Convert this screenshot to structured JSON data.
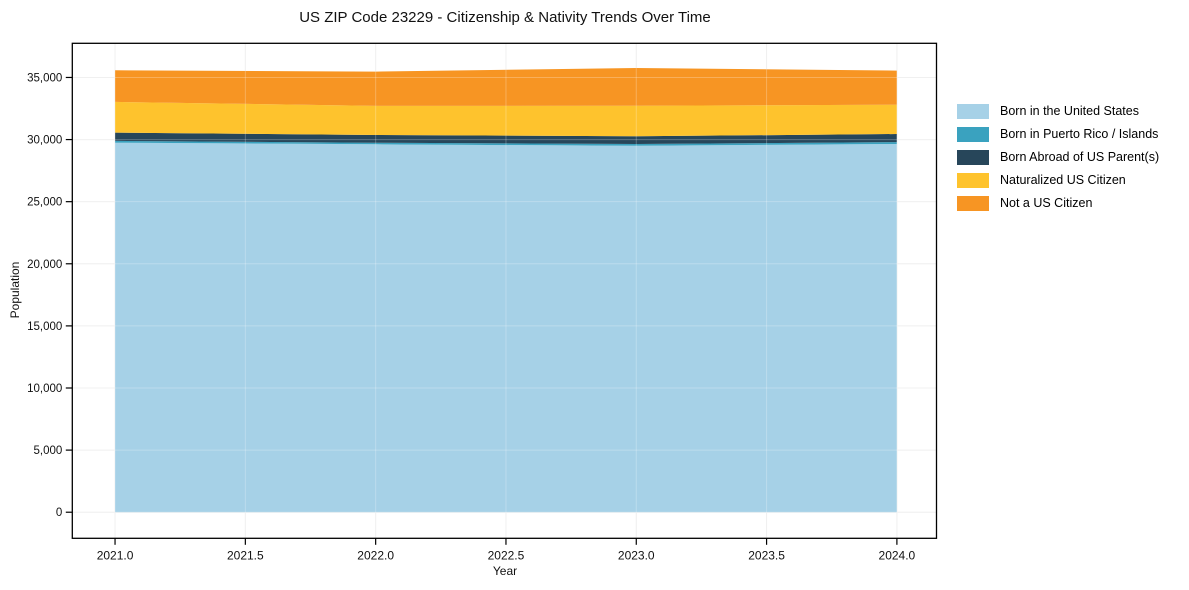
{
  "chart_data": {
    "type": "area",
    "stacked": true,
    "title": "US ZIP Code 23229 - Citizenship & Nativity Trends Over Time",
    "xlabel": "Year",
    "ylabel": "Population",
    "x": [
      2021,
      2022,
      2023,
      2024
    ],
    "series": [
      {
        "name": "Born in the United States",
        "color": "#A6D1E7",
        "values": [
          29750,
          29620,
          29500,
          29640
        ]
      },
      {
        "name": "Born in Puerto Rico / Islands",
        "color": "#3AA2BF",
        "values": [
          140,
          130,
          140,
          160
        ]
      },
      {
        "name": "Born Abroad of US Parent(s)",
        "color": "#27465A",
        "values": [
          670,
          620,
          620,
          650
        ]
      },
      {
        "name": "Naturalized US Citizen",
        "color": "#FEC32D",
        "values": [
          2470,
          2340,
          2460,
          2360
        ]
      },
      {
        "name": "Not a US Citizen",
        "color": "#F79523",
        "values": [
          2550,
          2760,
          3040,
          2740
        ]
      }
    ],
    "x_ticks": [
      2021.0,
      2021.5,
      2022.0,
      2022.5,
      2023.0,
      2023.5,
      2024.0
    ],
    "x_tick_labels": [
      "2021.0",
      "2021.5",
      "2022.0",
      "2022.5",
      "2023.0",
      "2023.5",
      "2024.0"
    ],
    "y_ticks": [
      0,
      5000,
      10000,
      15000,
      20000,
      25000,
      30000,
      35000
    ],
    "y_tick_labels": [
      "0",
      "5,000",
      "10,000",
      "15,000",
      "20,000",
      "25,000",
      "30,000",
      "35,000"
    ],
    "xlim": [
      2020.836,
      2024.152
    ],
    "ylim": [
      -2100,
      37750
    ],
    "grid": true,
    "legend_position": "right",
    "colors": {
      "grid": "#ebebeb",
      "spine": "#000000",
      "background": "#ffffff"
    }
  }
}
